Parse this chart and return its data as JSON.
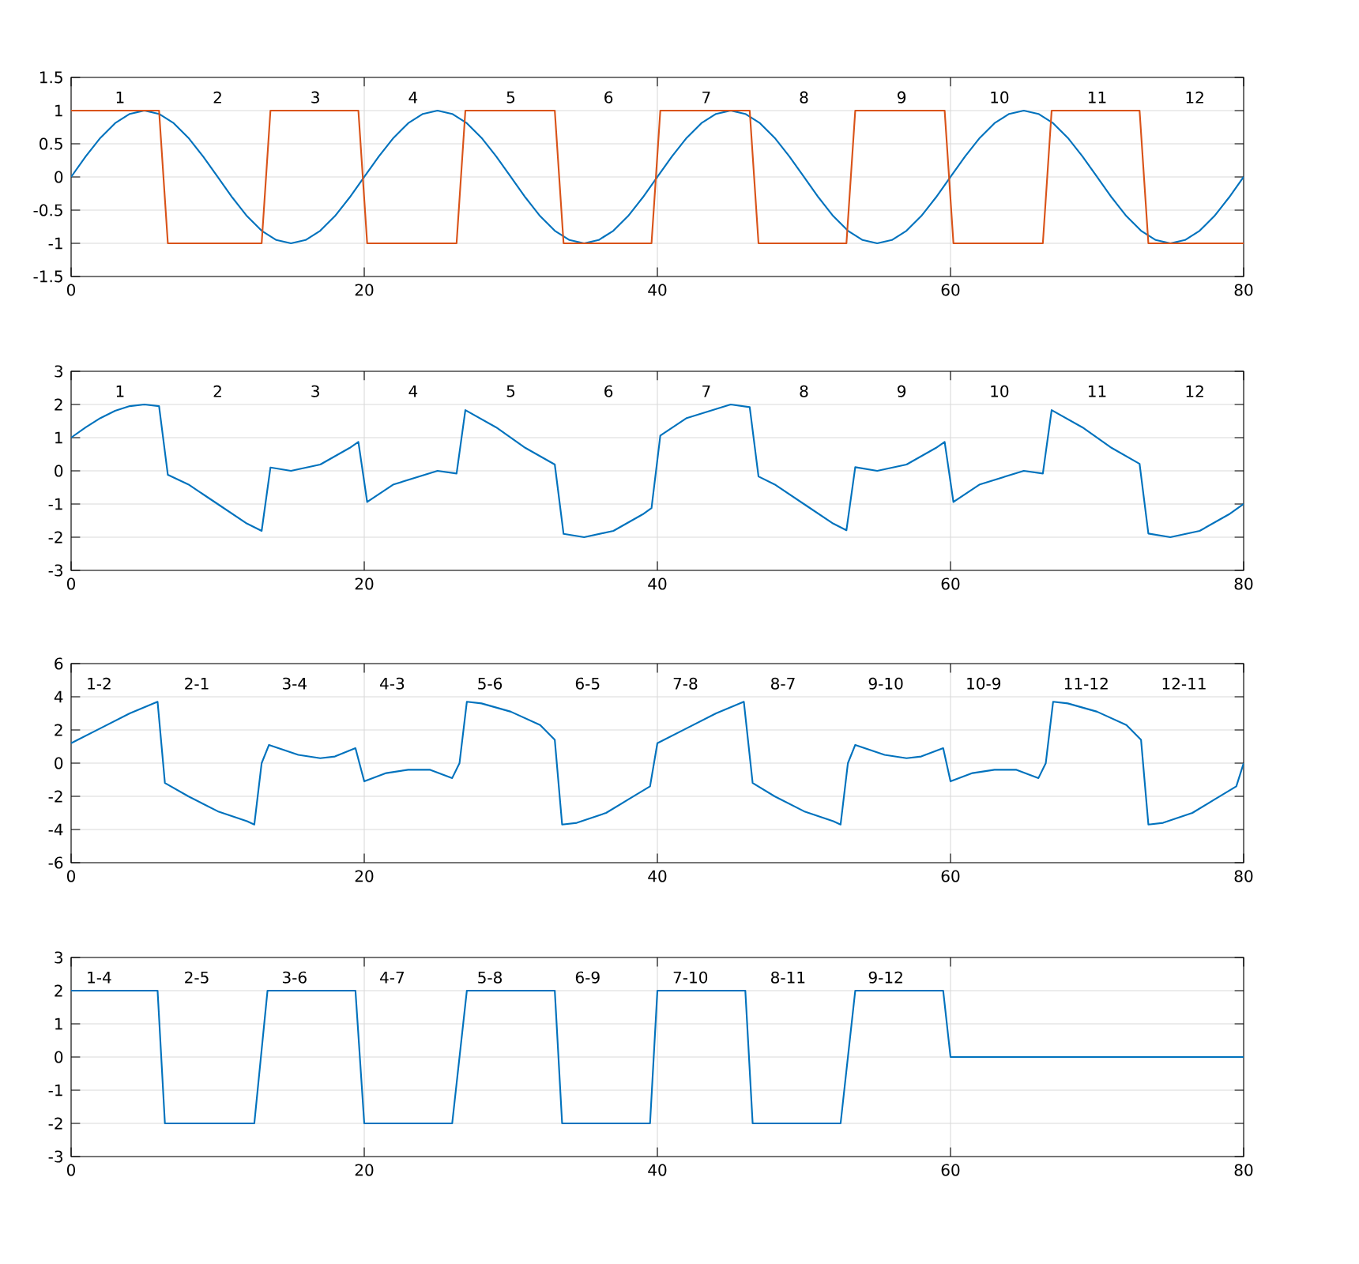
{
  "chart_data": [
    {
      "type": "line",
      "xlim": [
        0,
        80
      ],
      "ylim": [
        -1.5,
        1.5
      ],
      "xticks": [
        0,
        20,
        40,
        60,
        80
      ],
      "yticks": [
        -1.5,
        -1,
        -0.5,
        0,
        0.5,
        1,
        1.5
      ],
      "grid": true,
      "marker": "none",
      "line_style": "solid",
      "series": [
        {
          "color": "#0072bd",
          "x": [
            0,
            1,
            2,
            3,
            4,
            5,
            6,
            7,
            8,
            9,
            10,
            11,
            12,
            13,
            14,
            15,
            16,
            17,
            18,
            19,
            20,
            21,
            22,
            23,
            24,
            25,
            26,
            27,
            28,
            29,
            30,
            31,
            32,
            33,
            34,
            35,
            36,
            37,
            38,
            39,
            40,
            41,
            42,
            43,
            44,
            45,
            46,
            47,
            48,
            49,
            50,
            51,
            52,
            53,
            54,
            55,
            56,
            57,
            58,
            59,
            60,
            61,
            62,
            63,
            64,
            65,
            66,
            67,
            68,
            69,
            70,
            71,
            72,
            73,
            74,
            75,
            76,
            77,
            78,
            79,
            80
          ],
          "values": [
            0,
            0.31,
            0.59,
            0.81,
            0.95,
            1,
            0.95,
            0.81,
            0.59,
            0.31,
            0,
            -0.31,
            -0.59,
            -0.81,
            -0.95,
            -1,
            -0.95,
            -0.81,
            -0.59,
            -0.31,
            0,
            0.31,
            0.59,
            0.81,
            0.95,
            1,
            0.95,
            0.81,
            0.59,
            0.31,
            0,
            -0.31,
            -0.59,
            -0.81,
            -0.95,
            -1,
            -0.95,
            -0.81,
            -0.59,
            -0.31,
            0,
            0.31,
            0.59,
            0.81,
            0.95,
            1,
            0.95,
            0.81,
            0.59,
            0.31,
            0,
            -0.31,
            -0.59,
            -0.81,
            -0.95,
            -1,
            -0.95,
            -0.81,
            -0.59,
            -0.31,
            0,
            0.31,
            0.59,
            0.81,
            0.95,
            1,
            0.95,
            0.81,
            0.59,
            0.31,
            0,
            -0.31,
            -0.59,
            -0.81,
            -0.95,
            -1,
            -0.95,
            -0.81,
            -0.59,
            -0.31,
            0
          ]
        },
        {
          "color": "#d95319",
          "x": [
            0,
            6.0,
            6.6,
            13.0,
            13.6,
            19.6,
            20.2,
            26.3,
            26.9,
            33.0,
            33.6,
            39.6,
            40.2,
            46.3,
            46.9,
            52.9,
            53.5,
            59.6,
            60.2,
            66.3,
            66.9,
            72.9,
            73.5,
            80
          ],
          "values": [
            1,
            1,
            -1,
            -1,
            1,
            1,
            -1,
            -1,
            1,
            1,
            -1,
            -1,
            1,
            1,
            -1,
            -1,
            1,
            1,
            -1,
            -1,
            1,
            1,
            -1,
            -1
          ]
        }
      ],
      "annotations": [
        "1",
        "2",
        "3",
        "4",
        "5",
        "6",
        "7",
        "8",
        "9",
        "10",
        "11",
        "12"
      ]
    },
    {
      "type": "line",
      "xlim": [
        0,
        80
      ],
      "ylim": [
        -3,
        3
      ],
      "xticks": [
        0,
        20,
        40,
        60,
        80
      ],
      "yticks": [
        -3,
        -2,
        -1,
        0,
        1,
        2,
        3
      ],
      "grid": true,
      "marker": "none",
      "line_style": "solid",
      "series": [
        {
          "color": "#0072bd",
          "x": [
            0,
            1,
            2,
            3,
            4,
            5,
            6,
            6.6,
            8,
            10,
            12,
            13,
            13.6,
            15,
            17,
            19,
            19.6,
            20.2,
            22,
            25,
            26.3,
            26.9,
            29,
            31,
            33,
            33.6,
            35,
            37,
            39,
            39.6,
            40.2,
            42,
            45,
            46.3,
            46.9,
            48,
            50,
            52,
            52.9,
            53.5,
            55,
            57,
            59,
            59.6,
            60.2,
            62,
            65,
            66.3,
            66.9,
            69,
            71,
            72.9,
            73.5,
            75,
            77,
            79,
            80
          ],
          "values": [
            1,
            1.31,
            1.59,
            1.81,
            1.95,
            2,
            1.95,
            -0.12,
            -0.41,
            -1,
            -1.59,
            -1.81,
            0.1,
            0,
            0.19,
            0.69,
            0.87,
            -0.94,
            -0.41,
            0,
            -0.08,
            1.83,
            1.31,
            0.69,
            0.19,
            -1.9,
            -2,
            -1.81,
            -1.31,
            -1.12,
            1.06,
            1.59,
            2,
            1.92,
            -0.17,
            -0.41,
            -1,
            -1.59,
            -1.79,
            0.11,
            0,
            0.19,
            0.69,
            0.87,
            -0.94,
            -0.41,
            0,
            -0.08,
            1.83,
            1.31,
            0.69,
            0.21,
            -1.89,
            -2,
            -1.81,
            -1.31,
            -1
          ]
        }
      ],
      "annotations": [
        "1",
        "2",
        "3",
        "4",
        "5",
        "6",
        "7",
        "8",
        "9",
        "10",
        "11",
        "12"
      ]
    },
    {
      "type": "line",
      "xlim": [
        0,
        80
      ],
      "ylim": [
        -6,
        6
      ],
      "xticks": [
        0,
        20,
        40,
        60,
        80
      ],
      "yticks": [
        -6,
        -4,
        -2,
        0,
        2,
        4,
        6
      ],
      "grid": true,
      "marker": "none",
      "line_style": "solid",
      "series": [
        {
          "color": "#0072bd",
          "x": [
            0,
            2,
            4,
            5.9,
            6.4,
            8,
            10,
            12,
            12.5,
            13,
            13.5,
            15.5,
            17,
            18,
            19.4,
            20,
            21.5,
            23,
            24.5,
            26,
            26.5,
            27,
            28,
            30,
            32,
            33,
            33.5,
            34.5,
            36.5,
            38,
            39.5,
            40,
            42,
            44,
            45.9,
            46.5,
            48,
            50,
            52,
            52.5,
            53,
            53.5,
            55.5,
            57,
            58,
            59.5,
            60,
            61.5,
            63,
            64.5,
            66,
            66.5,
            67,
            68,
            70,
            72,
            73,
            73.5,
            74.5,
            76.5,
            78,
            79.5,
            80
          ],
          "values": [
            1.2,
            2.1,
            3.0,
            3.7,
            -1.2,
            -2.0,
            -2.9,
            -3.5,
            -3.7,
            0,
            1.1,
            0.5,
            0.3,
            0.4,
            0.9,
            -1.1,
            -0.6,
            -0.4,
            -0.4,
            -0.9,
            0,
            3.7,
            3.6,
            3.1,
            2.3,
            1.4,
            -3.7,
            -3.6,
            -3.0,
            -2.2,
            -1.4,
            1.2,
            2.1,
            3.0,
            3.7,
            -1.2,
            -2.0,
            -2.9,
            -3.5,
            -3.7,
            0,
            1.1,
            0.5,
            0.3,
            0.4,
            0.9,
            -1.1,
            -0.6,
            -0.4,
            -0.4,
            -0.9,
            0,
            3.7,
            3.6,
            3.1,
            2.3,
            1.4,
            -3.7,
            -3.6,
            -3.0,
            -2.2,
            -1.4,
            0
          ]
        }
      ],
      "annotations": [
        "1-2",
        "2-1",
        "3-4",
        "4-3",
        "5-6",
        "6-5",
        "7-8",
        "8-7",
        "9-10",
        "10-9",
        "11-12",
        "12-11"
      ]
    },
    {
      "type": "line",
      "xlim": [
        0,
        80
      ],
      "ylim": [
        -3,
        3
      ],
      "xticks": [
        0,
        20,
        40,
        60,
        80
      ],
      "yticks": [
        -3,
        -2,
        -1,
        0,
        1,
        2,
        3
      ],
      "grid": true,
      "marker": "none",
      "line_style": "solid",
      "series": [
        {
          "color": "#0072bd",
          "x": [
            0,
            5.9,
            6.4,
            12.5,
            13.4,
            19.4,
            20,
            26,
            27,
            33,
            33.5,
            39.5,
            40,
            46,
            46.5,
            52.5,
            53.5,
            59.5,
            60,
            80
          ],
          "values": [
            2,
            2,
            -2,
            -2,
            2,
            2,
            -2,
            -2,
            2,
            2,
            -2,
            -2,
            2,
            2,
            -2,
            -2,
            2,
            2,
            0,
            0
          ]
        }
      ],
      "annotations": [
        "1-4",
        "2-5",
        "3-6",
        "4-7",
        "5-8",
        "6-9",
        "7-10",
        "8-11",
        "9-12"
      ]
    }
  ]
}
